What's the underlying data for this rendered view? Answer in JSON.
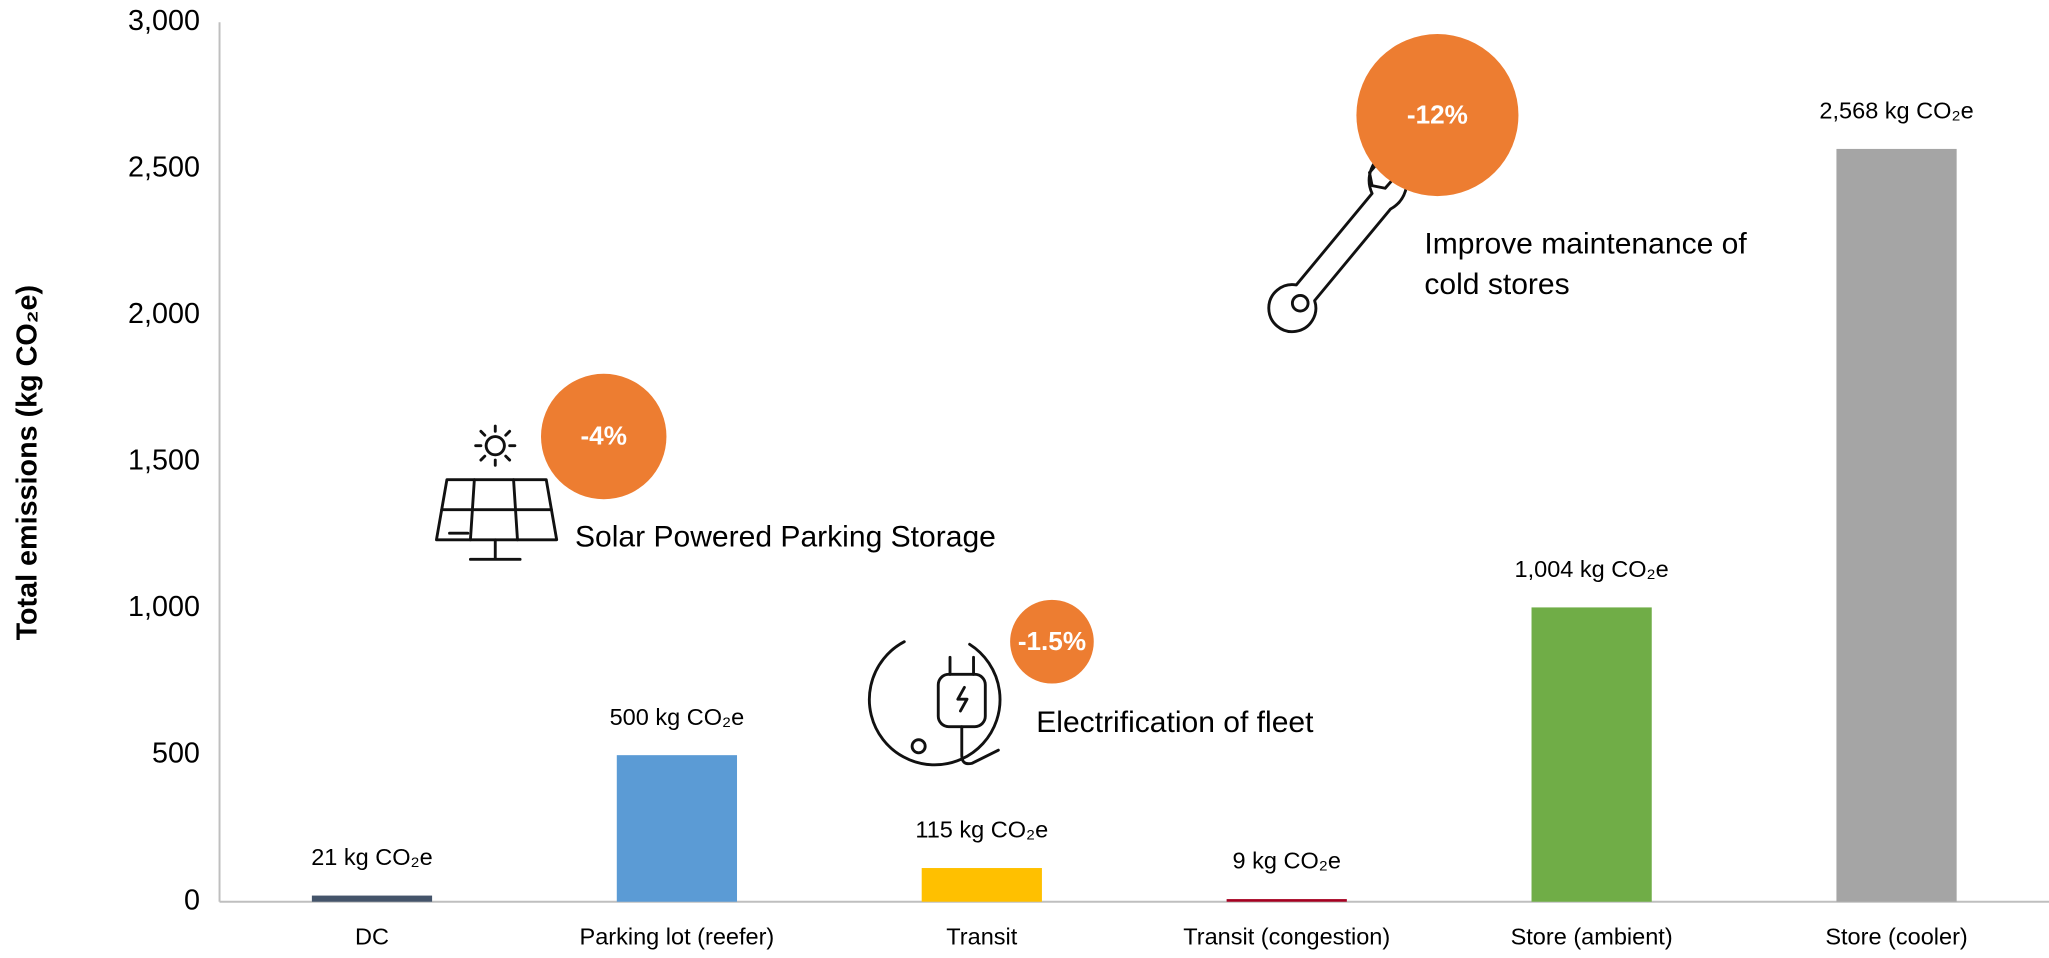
{
  "chart_data": {
    "type": "bar",
    "y_axis_label": "Total emissions (kg CO₂e)",
    "categories": [
      "DC",
      "Parking lot (reefer)",
      "Transit",
      "Transit (congestion)",
      "Store (ambient)",
      "Store (cooler)"
    ],
    "values": [
      21,
      500,
      115,
      9,
      1004,
      2568
    ],
    "value_labels": [
      "21 kg CO₂e",
      "500 kg CO₂e",
      "115 kg CO₂e",
      "9 kg CO₂e",
      "1,004 kg CO₂e",
      "2,568 kg CO₂e"
    ],
    "colors": [
      "#44546a",
      "#5b9bd5",
      "#ffc000",
      "#a50021",
      "#70ad47",
      "#a5a5a5"
    ],
    "ylim": [
      0,
      3000
    ],
    "yticks": [
      0,
      500,
      {
        "value": 1000,
        "label": "1,000"
      },
      {
        "value": 1500,
        "label": "1,500"
      },
      {
        "value": 2000,
        "label": "2,000"
      },
      {
        "value": 2500,
        "label": "2,500"
      },
      {
        "value": 3000,
        "label": "3,000"
      }
    ],
    "grid": false,
    "annotations": [
      {
        "badge": "-4%",
        "text": [
          "Solar Powered Parking Storage"
        ]
      },
      {
        "badge": "-1.5%",
        "text": [
          "Electrification of fleet"
        ]
      },
      {
        "badge": "-12%",
        "text": [
          "Improve maintenance of",
          "cold stores"
        ]
      }
    ]
  }
}
